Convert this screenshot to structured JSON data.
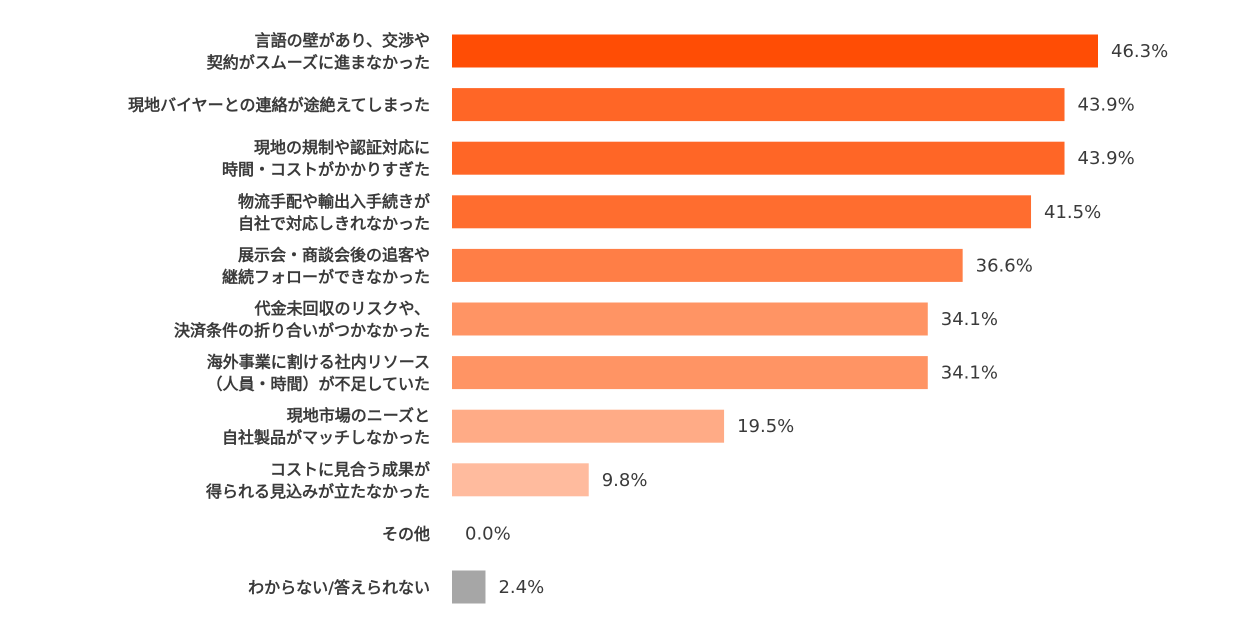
{
  "chart_data": {
    "type": "bar",
    "orientation": "horizontal",
    "unit": "%",
    "title": "",
    "xlabel": "",
    "ylabel": "",
    "xlim": [
      0,
      46.3
    ],
    "grid": false,
    "legend": "none",
    "categories": [
      [
        "言語の壁があり、交渉や",
        "契約がスムーズに進まなかった"
      ],
      [
        "現地バイヤーとの連絡が途絶えてしまった"
      ],
      [
        "現地の規制や認証対応に",
        "時間・コストがかかりすぎた"
      ],
      [
        "物流手配や輸出入手続きが",
        "自社で対応しきれなかった"
      ],
      [
        "展示会・商談会後の追客や",
        "継続フォローができなかった"
      ],
      [
        "代金未回収のリスクや、",
        "決済条件の折り合いがつかなかった"
      ],
      [
        "海外事業に割ける社内リソース",
        "（人員・時間）が不足していた"
      ],
      [
        "現地市場のニーズと",
        "自社製品がマッチしなかった"
      ],
      [
        "コストに見合う成果が",
        "得られる見込みが立たなかった"
      ],
      [
        "その他"
      ],
      [
        "わからない/答えられない"
      ]
    ],
    "values": [
      46.3,
      43.9,
      43.9,
      41.5,
      36.6,
      34.1,
      34.1,
      19.5,
      9.8,
      0.0,
      2.4
    ],
    "value_labels": [
      "46.3%",
      "43.9%",
      "43.9%",
      "41.5%",
      "36.6%",
      "34.1%",
      "34.1%",
      "19.5%",
      "9.8%",
      "0.0%",
      "2.4%"
    ],
    "colors": [
      "#ff4d05",
      "#ff6626",
      "#ff6626",
      "#ff6d2f",
      "#ff7e46",
      "#ff9464",
      "#ff9464",
      "#ffab86",
      "#ffbb9e",
      "#ffbb9e",
      "#a6a6a6"
    ]
  }
}
